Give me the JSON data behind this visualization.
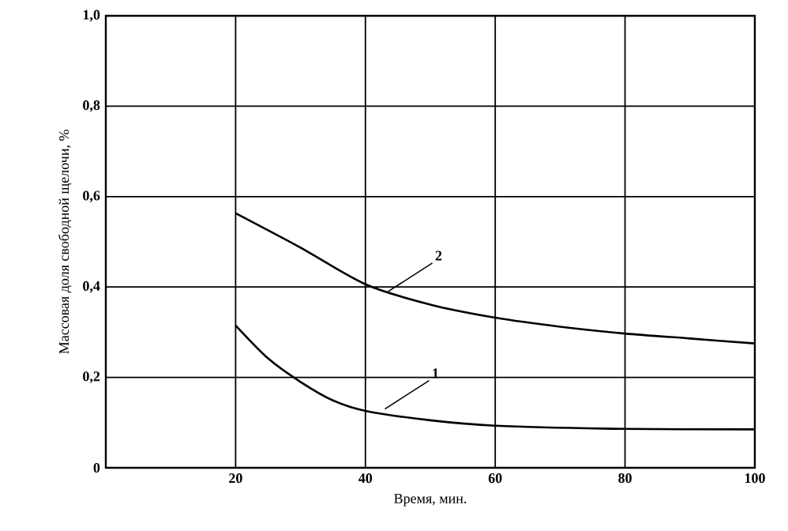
{
  "chart_data": {
    "type": "line",
    "xlabel": "Время, мин.",
    "ylabel": "Массовая доля свободной щелочи, %",
    "xlim": [
      0,
      100
    ],
    "xticks": [
      20,
      40,
      60,
      80,
      100
    ],
    "ylim": [
      0,
      1.0
    ],
    "yticks": [
      0,
      {
        "value": 0.2,
        "label": "0,2"
      },
      {
        "value": 0.4,
        "label": "0,4"
      },
      {
        "value": 0.6,
        "label": "0,6"
      },
      {
        "value": 0.8,
        "label": "0,8"
      },
      {
        "value": 1.0,
        "label": "1,0"
      }
    ],
    "grid": true,
    "marker": "none",
    "line_style": "solid",
    "series": [
      {
        "color": "#000000",
        "x": [
          20,
          25,
          30,
          35,
          40,
          50,
          60,
          80,
          100
        ],
        "values": [
          0.315,
          0.242,
          0.19,
          0.149,
          0.126,
          0.105,
          0.093,
          0.086,
          0.085
        ]
      },
      {
        "color": "#000000",
        "x": [
          20,
          30,
          40,
          50,
          60,
          70,
          80,
          90,
          100
        ],
        "values": [
          0.563,
          0.487,
          0.406,
          0.361,
          0.332,
          0.312,
          0.297,
          0.286,
          0.275
        ]
      }
    ],
    "annotations": [
      {
        "text": "1",
        "x": 43,
        "y": 0.13
      },
      {
        "text": "2",
        "x": 43.5,
        "y": 0.39
      }
    ]
  }
}
